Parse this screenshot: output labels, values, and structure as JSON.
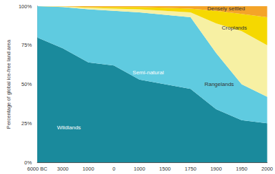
{
  "chart_data": {
    "type": "area",
    "stacked": true,
    "grid": false,
    "y_label": "Percentage of global ice-free land area",
    "categories": [
      "6000 BC",
      "3000",
      "1000",
      "0",
      "1000",
      "1500",
      "1750",
      "1900",
      "1950",
      "2000"
    ],
    "ylim": [
      0,
      100
    ],
    "yticks": [
      {
        "value": 0,
        "label": "0%"
      },
      {
        "value": 25,
        "label": "25%"
      },
      {
        "value": 50,
        "label": "50%"
      },
      {
        "value": 75,
        "label": "75%"
      },
      {
        "value": 100,
        "label": "100%"
      }
    ],
    "series": [
      {
        "name": "Wildlands",
        "color": "#1a8a9c",
        "values": [
          80,
          73,
          64,
          62,
          53,
          50,
          47,
          34,
          27,
          25
        ]
      },
      {
        "name": "Semi-natural",
        "color": "#5fcbe0",
        "values": [
          20,
          26.5,
          34,
          35,
          43,
          44.5,
          46,
          36,
          23,
          17
        ]
      },
      {
        "name": "Rangelands",
        "color": "#f7f0a3",
        "values": [
          0,
          0.3,
          1,
          1.5,
          2,
          2.5,
          3,
          19,
          34,
          33
        ]
      },
      {
        "name": "Croplands",
        "color": "#f5d800",
        "values": [
          0,
          0.1,
          0.5,
          1,
          1.5,
          2,
          2.5,
          8,
          11,
          18
        ]
      },
      {
        "name": "Densely settled",
        "color": "#f4a428",
        "values": [
          0,
          0.1,
          0.5,
          0.5,
          0.5,
          1,
          1.5,
          3,
          5,
          7
        ]
      }
    ]
  }
}
